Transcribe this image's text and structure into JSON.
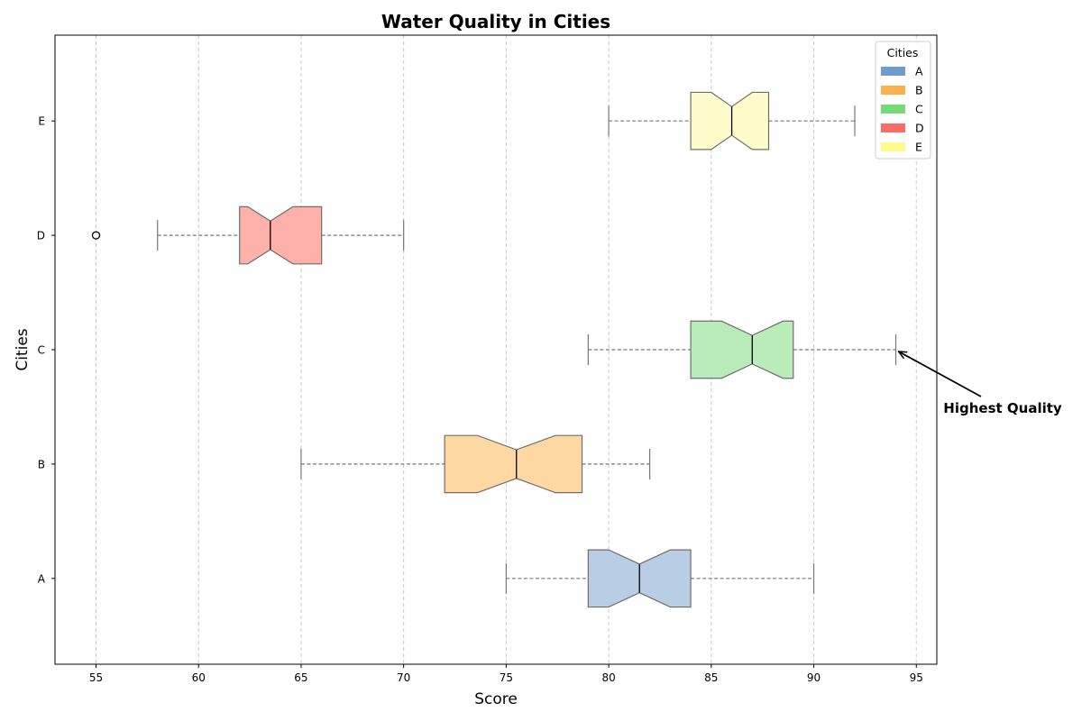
{
  "chart_data": {
    "type": "boxplot",
    "orientation": "horizontal",
    "notched": true,
    "title": "Water Quality in Cities",
    "xlabel": "Score",
    "ylabel": "Cities",
    "xlim": [
      53,
      96
    ],
    "xticks": [
      55,
      60,
      65,
      70,
      75,
      80,
      85,
      90,
      95
    ],
    "grid": "vertical dashed",
    "categories": [
      "A",
      "B",
      "C",
      "D",
      "E"
    ],
    "series": [
      {
        "name": "A",
        "whisker_low": 75,
        "q1": 79,
        "median": 81.5,
        "q3": 84,
        "whisker_high": 90,
        "notch_low": 80,
        "notch_high": 83,
        "outliers": [],
        "color": "#b9cde4"
      },
      {
        "name": "B",
        "whisker_low": 65,
        "q1": 72,
        "median": 75.5,
        "q3": 78.7,
        "whisker_high": 82,
        "notch_low": 73.6,
        "notch_high": 77.4,
        "outliers": [],
        "color": "#fed8a3"
      },
      {
        "name": "C",
        "whisker_low": 79,
        "q1": 84,
        "median": 87,
        "q3": 89,
        "whisker_high": 94,
        "notch_low": 85.5,
        "notch_high": 88.5,
        "outliers": [],
        "color": "#b9ecb8"
      },
      {
        "name": "D",
        "whisker_low": 58,
        "q1": 62,
        "median": 63.5,
        "q3": 66,
        "whisker_high": 70,
        "notch_low": 62.4,
        "notch_high": 64.6,
        "outliers": [
          55
        ],
        "color": "#feb1aa"
      },
      {
        "name": "E",
        "whisker_low": 80,
        "q1": 84,
        "median": 86,
        "q3": 87.8,
        "whisker_high": 92,
        "notch_low": 85,
        "notch_high": 87,
        "outliers": [],
        "color": "#fefcca"
      }
    ],
    "legend": {
      "title": "Cities",
      "placement": "top-right",
      "entries": [
        {
          "label": "A",
          "color": "#729bcd"
        },
        {
          "label": "B",
          "color": "#fdb14e"
        },
        {
          "label": "C",
          "color": "#76db77"
        },
        {
          "label": "D",
          "color": "#fd6b65"
        },
        {
          "label": "E",
          "color": "#fdfb8f"
        }
      ]
    },
    "annotation": {
      "text": "Highest Quality",
      "target_x": 94,
      "target_category": "C"
    }
  }
}
